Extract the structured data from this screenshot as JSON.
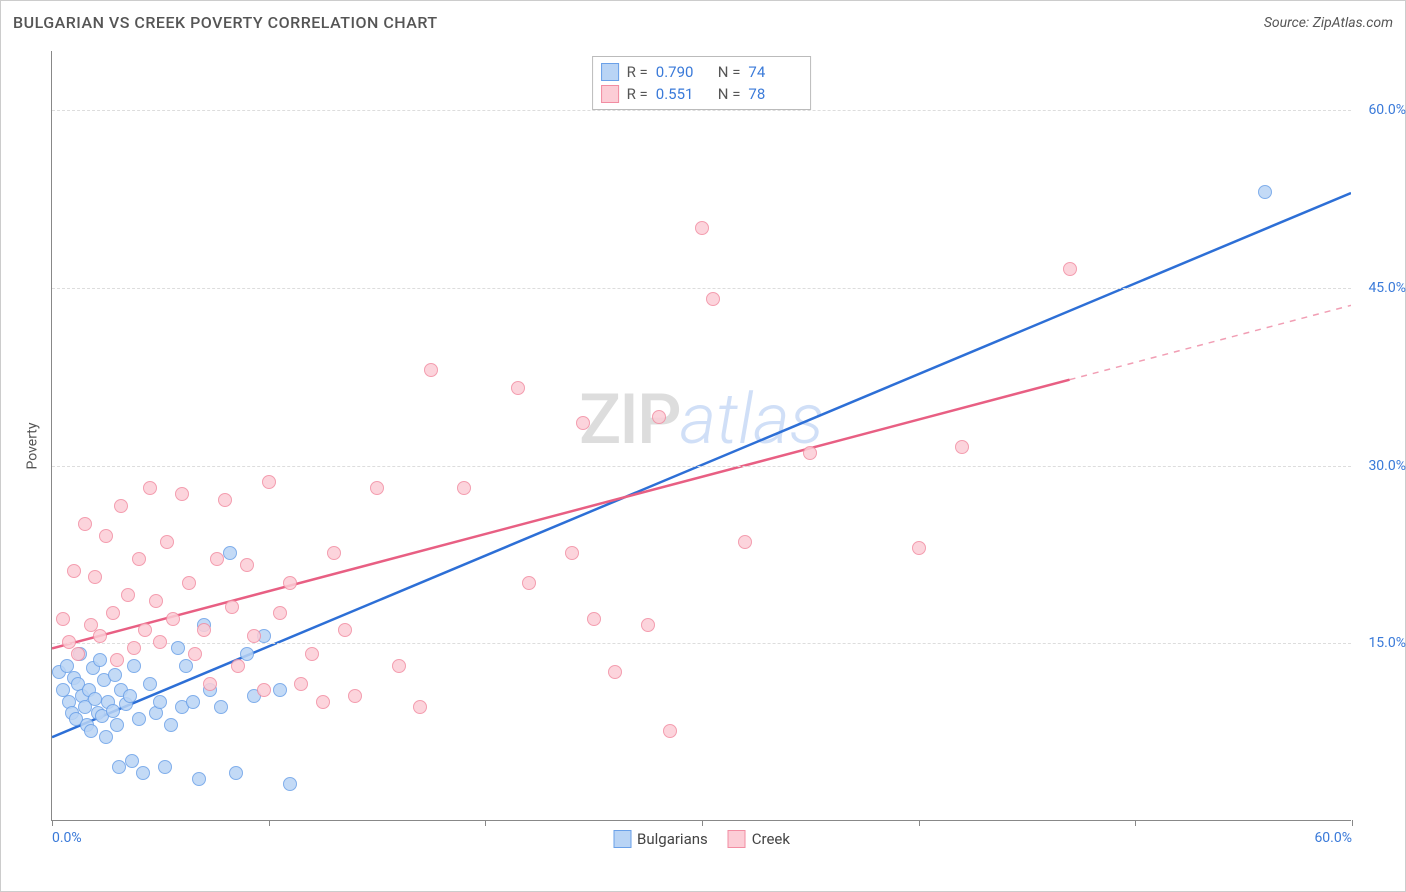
{
  "title": "BULGARIAN VS CREEK POVERTY CORRELATION CHART",
  "source_label": "Source: ZipAtlas.com",
  "ylabel": "Poverty",
  "watermark_a": "ZIP",
  "watermark_b": "atlas",
  "chart": {
    "type": "scatter",
    "background_color": "#ffffff",
    "grid_color": "#dddddd",
    "axis_color": "#888888",
    "tick_label_color": "#3a7ad9",
    "title_color": "#555555",
    "title_fontsize": 16,
    "tick_fontsize": 14,
    "xlim": [
      0,
      60
    ],
    "ylim": [
      0,
      65
    ],
    "yticks": [
      15,
      30,
      45,
      60
    ],
    "ytick_labels": [
      "15.0%",
      "30.0%",
      "45.0%",
      "60.0%"
    ],
    "xticks": [
      0,
      10,
      20,
      30,
      40,
      50,
      60
    ],
    "xtick_labels_shown": {
      "0": "0.0%",
      "60": "60.0%"
    },
    "marker_radius": 7,
    "marker_stroke_width": 1.2,
    "series": [
      {
        "name": "Bulgarians",
        "fill_color": "#b9d4f5",
        "stroke_color": "#6aa0e8",
        "r_label": "R =",
        "r_value": "0.790",
        "n_label": "N =",
        "n_value": "74",
        "trend": {
          "x1": 0,
          "y1": 7.0,
          "x2": 60,
          "y2": 53.0,
          "dash_from_x": 60,
          "solid_color": "#2d6fd6",
          "width": 2.5
        },
        "points": [
          [
            0.3,
            12.5
          ],
          [
            0.5,
            11.0
          ],
          [
            0.7,
            13.0
          ],
          [
            0.8,
            10.0
          ],
          [
            0.9,
            9.0
          ],
          [
            1.0,
            12.0
          ],
          [
            1.1,
            8.5
          ],
          [
            1.2,
            11.5
          ],
          [
            1.3,
            14.0
          ],
          [
            1.4,
            10.5
          ],
          [
            1.5,
            9.5
          ],
          [
            1.6,
            8.0
          ],
          [
            1.7,
            11.0
          ],
          [
            1.8,
            7.5
          ],
          [
            1.9,
            12.8
          ],
          [
            2.0,
            10.2
          ],
          [
            2.1,
            9.0
          ],
          [
            2.2,
            13.5
          ],
          [
            2.3,
            8.8
          ],
          [
            2.4,
            11.8
          ],
          [
            2.5,
            7.0
          ],
          [
            2.6,
            10.0
          ],
          [
            2.8,
            9.2
          ],
          [
            2.9,
            12.2
          ],
          [
            3.0,
            8.0
          ],
          [
            3.1,
            4.5
          ],
          [
            3.2,
            11.0
          ],
          [
            3.4,
            9.8
          ],
          [
            3.6,
            10.5
          ],
          [
            3.7,
            5.0
          ],
          [
            3.8,
            13.0
          ],
          [
            4.0,
            8.5
          ],
          [
            4.2,
            4.0
          ],
          [
            4.5,
            11.5
          ],
          [
            4.8,
            9.0
          ],
          [
            5.0,
            10.0
          ],
          [
            5.2,
            4.5
          ],
          [
            5.5,
            8.0
          ],
          [
            5.8,
            14.5
          ],
          [
            6.0,
            9.5
          ],
          [
            6.2,
            13.0
          ],
          [
            6.5,
            10.0
          ],
          [
            6.8,
            3.5
          ],
          [
            7.0,
            16.5
          ],
          [
            7.3,
            11.0
          ],
          [
            7.8,
            9.5
          ],
          [
            8.2,
            22.5
          ],
          [
            8.5,
            4.0
          ],
          [
            9.0,
            14.0
          ],
          [
            9.3,
            10.5
          ],
          [
            9.8,
            15.5
          ],
          [
            10.5,
            11.0
          ],
          [
            11.0,
            3.0
          ],
          [
            56.0,
            53.0
          ]
        ]
      },
      {
        "name": "Creek",
        "fill_color": "#fccdd6",
        "stroke_color": "#f28da2",
        "r_label": "R =",
        "r_value": "0.551",
        "n_label": "N =",
        "n_value": "78",
        "trend": {
          "x1": 0,
          "y1": 14.5,
          "x2": 60,
          "y2": 43.5,
          "dash_from_x": 47,
          "solid_color": "#e85f83",
          "width": 2.5
        },
        "points": [
          [
            0.5,
            17.0
          ],
          [
            0.8,
            15.0
          ],
          [
            1.0,
            21.0
          ],
          [
            1.2,
            14.0
          ],
          [
            1.5,
            25.0
          ],
          [
            1.8,
            16.5
          ],
          [
            2.0,
            20.5
          ],
          [
            2.2,
            15.5
          ],
          [
            2.5,
            24.0
          ],
          [
            2.8,
            17.5
          ],
          [
            3.0,
            13.5
          ],
          [
            3.2,
            26.5
          ],
          [
            3.5,
            19.0
          ],
          [
            3.8,
            14.5
          ],
          [
            4.0,
            22.0
          ],
          [
            4.3,
            16.0
          ],
          [
            4.5,
            28.0
          ],
          [
            4.8,
            18.5
          ],
          [
            5.0,
            15.0
          ],
          [
            5.3,
            23.5
          ],
          [
            5.6,
            17.0
          ],
          [
            6.0,
            27.5
          ],
          [
            6.3,
            20.0
          ],
          [
            6.6,
            14.0
          ],
          [
            7.0,
            16.0
          ],
          [
            7.3,
            11.5
          ],
          [
            7.6,
            22.0
          ],
          [
            8.0,
            27.0
          ],
          [
            8.3,
            18.0
          ],
          [
            8.6,
            13.0
          ],
          [
            9.0,
            21.5
          ],
          [
            9.3,
            15.5
          ],
          [
            9.8,
            11.0
          ],
          [
            10.0,
            28.5
          ],
          [
            10.5,
            17.5
          ],
          [
            11.0,
            20.0
          ],
          [
            11.5,
            11.5
          ],
          [
            12.0,
            14.0
          ],
          [
            12.5,
            10.0
          ],
          [
            13.0,
            22.5
          ],
          [
            13.5,
            16.0
          ],
          [
            14.0,
            10.5
          ],
          [
            15.0,
            28.0
          ],
          [
            16.0,
            13.0
          ],
          [
            17.0,
            9.5
          ],
          [
            17.5,
            38.0
          ],
          [
            19.0,
            28.0
          ],
          [
            21.5,
            36.5
          ],
          [
            22.0,
            20.0
          ],
          [
            24.0,
            22.5
          ],
          [
            24.5,
            33.5
          ],
          [
            25.0,
            17.0
          ],
          [
            26.0,
            12.5
          ],
          [
            27.5,
            16.5
          ],
          [
            28.0,
            34.0
          ],
          [
            28.5,
            7.5
          ],
          [
            30.0,
            50.0
          ],
          [
            30.5,
            44.0
          ],
          [
            32.0,
            23.5
          ],
          [
            35.0,
            31.0
          ],
          [
            40.0,
            23.0
          ],
          [
            42.0,
            31.5
          ],
          [
            47.0,
            46.5
          ]
        ]
      }
    ]
  },
  "bottom_legend": [
    {
      "label": "Bulgarians",
      "fill": "#b9d4f5",
      "stroke": "#6aa0e8"
    },
    {
      "label": "Creek",
      "fill": "#fccdd6",
      "stroke": "#f28da2"
    }
  ]
}
